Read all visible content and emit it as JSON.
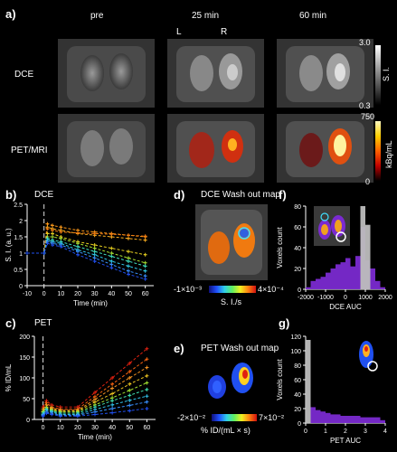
{
  "panel_a": {
    "letter": "a)",
    "columns": [
      "pre",
      "25 min",
      "60 min"
    ],
    "side_left": "L",
    "side_right": "R",
    "rows": [
      "DCE",
      "PET/MRI"
    ],
    "dce_scale": {
      "max": "3.0",
      "min": "0.3",
      "unit": "S. I."
    },
    "pet_scale": {
      "max": "750",
      "min": "0",
      "unit": "kBq/mL"
    }
  },
  "panel_b": {
    "letter": "b)",
    "title": "DCE"
  },
  "panel_c": {
    "letter": "c)",
    "title": "PET"
  },
  "panel_d": {
    "letter": "d)",
    "title": "DCE Wash out map",
    "scale_min": "-1×10⁻³",
    "scale_max": "4×10⁻⁴",
    "unit": "S. I./s"
  },
  "panel_e": {
    "letter": "e)",
    "title": "PET Wash out map",
    "scale_min": "-2×10⁻²",
    "scale_max": "7×10⁻²",
    "unit": "% ID/(mL × s)"
  },
  "panel_f": {
    "letter": "f)"
  },
  "panel_g": {
    "letter": "g)"
  },
  "chart_data": [
    {
      "id": "b",
      "type": "line",
      "title": "",
      "xlabel": "Time (min)",
      "ylabel": "S. I. (a. u.)",
      "xlim": [
        -10,
        65
      ],
      "ylim": [
        0,
        2.5
      ],
      "xticks": [
        -10,
        0,
        10,
        20,
        30,
        40,
        50,
        60
      ],
      "yticks": [
        0,
        0.5,
        1,
        1.5,
        2,
        2.5
      ],
      "ytick_labels": [
        "0",
        "0.5",
        "1",
        "1.5",
        "2",
        "2.5"
      ],
      "injection_time": 0,
      "x": [
        -10,
        0,
        2,
        5,
        10,
        20,
        30,
        40,
        50,
        60
      ],
      "series": [
        {
          "color": "#ff9a1a",
          "values": [
            1.0,
            1.0,
            1.9,
            1.85,
            1.8,
            1.7,
            1.65,
            1.6,
            1.55,
            1.5
          ]
        },
        {
          "color": "#ffb020",
          "values": [
            1.0,
            1.0,
            1.8,
            1.75,
            1.7,
            1.6,
            1.55,
            1.5,
            1.45,
            1.4
          ]
        },
        {
          "color": "#f07a10",
          "values": [
            1.0,
            1.0,
            1.75,
            1.7,
            1.65,
            1.62,
            1.6,
            1.58,
            1.55,
            1.52
          ]
        },
        {
          "color": "#e8d020",
          "values": [
            1.0,
            1.0,
            1.6,
            1.6,
            1.5,
            1.35,
            1.25,
            1.15,
            1.05,
            0.95
          ]
        },
        {
          "color": "#a8e030",
          "values": [
            1.0,
            1.0,
            1.5,
            1.5,
            1.45,
            1.3,
            1.15,
            1.0,
            0.85,
            0.7
          ]
        },
        {
          "color": "#40e0c0",
          "values": [
            1.0,
            1.0,
            1.45,
            1.4,
            1.35,
            1.2,
            1.05,
            0.9,
            0.75,
            0.6
          ]
        },
        {
          "color": "#30c8e8",
          "values": [
            1.0,
            1.0,
            1.4,
            1.35,
            1.3,
            1.1,
            0.95,
            0.75,
            0.6,
            0.45
          ]
        },
        {
          "color": "#3890ff",
          "values": [
            1.0,
            1.0,
            1.35,
            1.3,
            1.25,
            1.05,
            0.85,
            0.65,
            0.45,
            0.3
          ]
        },
        {
          "color": "#2050f0",
          "values": [
            1.0,
            1.0,
            1.3,
            1.25,
            1.2,
            0.95,
            0.75,
            0.55,
            0.35,
            0.2
          ]
        }
      ]
    },
    {
      "id": "c",
      "type": "line",
      "title": "",
      "xlabel": "Time (min)",
      "ylabel": "% ID/mL",
      "xlim": [
        -5,
        65
      ],
      "ylim": [
        0,
        200
      ],
      "xticks": [
        0,
        10,
        20,
        30,
        40,
        50,
        60
      ],
      "yticks": [
        0,
        50,
        100,
        150,
        200
      ],
      "injection_time": 0,
      "x": [
        0,
        2,
        5,
        10,
        20,
        30,
        40,
        50,
        60
      ],
      "series": [
        {
          "color": "#e02010",
          "values": [
            30,
            45,
            35,
            30,
            30,
            65,
            100,
            135,
            170
          ]
        },
        {
          "color": "#f06010",
          "values": [
            25,
            40,
            30,
            25,
            25,
            55,
            85,
            115,
            145
          ]
        },
        {
          "color": "#f09020",
          "values": [
            25,
            35,
            28,
            22,
            22,
            48,
            75,
            100,
            125
          ]
        },
        {
          "color": "#e8c020",
          "values": [
            20,
            30,
            25,
            20,
            20,
            42,
            62,
            85,
            105
          ]
        },
        {
          "color": "#a0e030",
          "values": [
            18,
            28,
            22,
            18,
            18,
            35,
            52,
            70,
            88
          ]
        },
        {
          "color": "#40e0b0",
          "values": [
            15,
            25,
            20,
            15,
            15,
            30,
            45,
            58,
            72
          ]
        },
        {
          "color": "#30c0e8",
          "values": [
            12,
            22,
            18,
            12,
            12,
            24,
            35,
            46,
            56
          ]
        },
        {
          "color": "#3890ff",
          "values": [
            10,
            18,
            15,
            10,
            10,
            18,
            26,
            34,
            42
          ]
        },
        {
          "color": "#2050f0",
          "values": [
            8,
            15,
            12,
            8,
            8,
            12,
            16,
            21,
            26
          ]
        }
      ]
    },
    {
      "id": "f",
      "type": "bar",
      "title": "",
      "xlabel": "DCE AUC",
      "ylabel": "Voxels count",
      "xlim": [
        -2000,
        2000
      ],
      "ylim": [
        0,
        80
      ],
      "xticks": [
        -2000,
        -1000,
        0,
        1000,
        2000
      ],
      "yticks": [
        0,
        20,
        40,
        60,
        80
      ],
      "bin_centers": [
        -1875,
        -1625,
        -1375,
        -1125,
        -875,
        -625,
        -375,
        -125,
        125,
        375,
        625,
        875,
        1125,
        1375,
        1625,
        1875
      ],
      "series": [
        {
          "color": "#7a2ad0",
          "values": [
            2,
            8,
            10,
            12,
            16,
            20,
            24,
            26,
            30,
            22,
            32,
            60,
            28,
            20,
            8,
            2
          ]
        },
        {
          "color": "#bdbdbd",
          "values": [
            0,
            0,
            0,
            0,
            0,
            0,
            0,
            0,
            0,
            0,
            0,
            80,
            62,
            0,
            0,
            0
          ]
        }
      ]
    },
    {
      "id": "g",
      "type": "bar",
      "title": "",
      "xlabel": "PET AUC",
      "ylabel": "Voxels count",
      "xlim": [
        0,
        4
      ],
      "ylim": [
        0,
        120
      ],
      "xticks": [
        0,
        1,
        2,
        3,
        4
      ],
      "yticks": [
        0,
        20,
        40,
        60,
        80,
        100,
        120
      ],
      "bin_centers": [
        0.125,
        0.375,
        0.625,
        0.875,
        1.125,
        1.375,
        1.625,
        1.875,
        2.125,
        2.375,
        2.625,
        2.875,
        3.125,
        3.375,
        3.625,
        3.875
      ],
      "series": [
        {
          "color": "#bdbdbd",
          "values": [
            115,
            0,
            0,
            0,
            0,
            0,
            0,
            0,
            0,
            0,
            0,
            0,
            0,
            0,
            0,
            0
          ]
        },
        {
          "color": "#7a2ad0",
          "values": [
            0,
            22,
            18,
            16,
            14,
            12,
            12,
            10,
            10,
            10,
            10,
            8,
            8,
            8,
            8,
            4
          ]
        }
      ]
    }
  ]
}
